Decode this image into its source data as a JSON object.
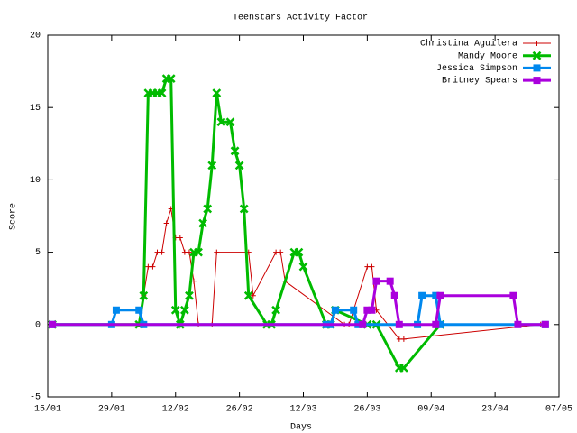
{
  "chart_data": {
    "type": "line",
    "title": "Teenstars Activity Factor",
    "xlabel": "Days",
    "ylabel": "Score",
    "xlim": [
      "15/01",
      "07/05"
    ],
    "xticks": [
      "15/01",
      "29/01",
      "12/02",
      "26/02",
      "12/03",
      "26/03",
      "09/04",
      "23/04",
      "07/05"
    ],
    "ylim": [
      -5,
      20
    ],
    "yticks": [
      -5,
      0,
      5,
      10,
      15,
      20
    ],
    "legend": "top-right",
    "series": [
      {
        "name": "Christina Aguilera",
        "color": "#cc0000",
        "marker": "plus",
        "width": 1,
        "x": [
          "16/01",
          "04/02",
          "05/02",
          "06/02",
          "07/02",
          "08/02",
          "09/02",
          "10/02",
          "11/02",
          "12/02",
          "13/02",
          "14/02",
          "15/02",
          "16/02",
          "17/02",
          "20/02",
          "21/02",
          "28/02",
          "01/03",
          "06/03",
          "07/03",
          "08/03",
          "21/03",
          "22/03",
          "26/03",
          "27/03",
          "28/03",
          "02/04",
          "03/04",
          "03/05"
        ],
        "values": [
          0,
          0,
          2,
          4,
          4,
          5,
          5,
          7,
          8,
          6,
          6,
          5,
          5,
          3,
          0,
          0,
          5,
          5,
          2,
          5,
          5,
          3,
          0,
          0,
          4,
          4,
          1,
          -1,
          -1,
          0
        ]
      },
      {
        "name": "Mandy Moore",
        "color": "#00bb00",
        "marker": "cross",
        "width": 3,
        "x": [
          "16/01",
          "04/02",
          "05/02",
          "06/02",
          "07/02",
          "08/02",
          "09/02",
          "10/02",
          "11/02",
          "12/02",
          "13/02",
          "14/02",
          "15/02",
          "16/02",
          "17/02",
          "18/02",
          "19/02",
          "20/02",
          "21/02",
          "22/02",
          "24/02",
          "25/02",
          "26/02",
          "27/02",
          "28/02",
          "04/03",
          "05/03",
          "06/03",
          "10/03",
          "11/03",
          "12/03",
          "17/03",
          "18/03",
          "19/03",
          "26/03",
          "28/03",
          "02/04",
          "03/04",
          "11/04"
        ],
        "values": [
          0,
          0,
          2,
          16,
          16,
          16,
          16,
          17,
          17,
          1,
          0,
          1,
          2,
          5,
          5,
          7,
          8,
          11,
          16,
          14,
          14,
          12,
          11,
          8,
          2,
          0,
          0,
          1,
          5,
          5,
          4,
          0,
          0,
          1,
          0,
          0,
          -3,
          -3,
          0
        ]
      },
      {
        "name": "Jessica Simpson",
        "color": "#0088ee",
        "marker": "square",
        "width": 3,
        "x": [
          "16/01",
          "29/01",
          "30/01",
          "04/02",
          "05/02",
          "17/03",
          "18/03",
          "19/03",
          "23/03",
          "24/03",
          "06/04",
          "07/04",
          "10/04",
          "11/04",
          "04/05"
        ],
        "values": [
          0,
          0,
          1,
          1,
          0,
          0,
          0,
          1,
          1,
          0,
          0,
          2,
          2,
          0,
          0
        ]
      },
      {
        "name": "Britney Spears",
        "color": "#aa00dd",
        "marker": "square",
        "width": 3,
        "x": [
          "16/01",
          "25/03",
          "26/03",
          "27/03",
          "28/03",
          "31/03",
          "01/04",
          "02/04",
          "10/04",
          "11/04",
          "27/04",
          "28/04",
          "04/05"
        ],
        "values": [
          0,
          0,
          1,
          1,
          3,
          3,
          2,
          0,
          0,
          2,
          2,
          0,
          0
        ]
      }
    ]
  }
}
